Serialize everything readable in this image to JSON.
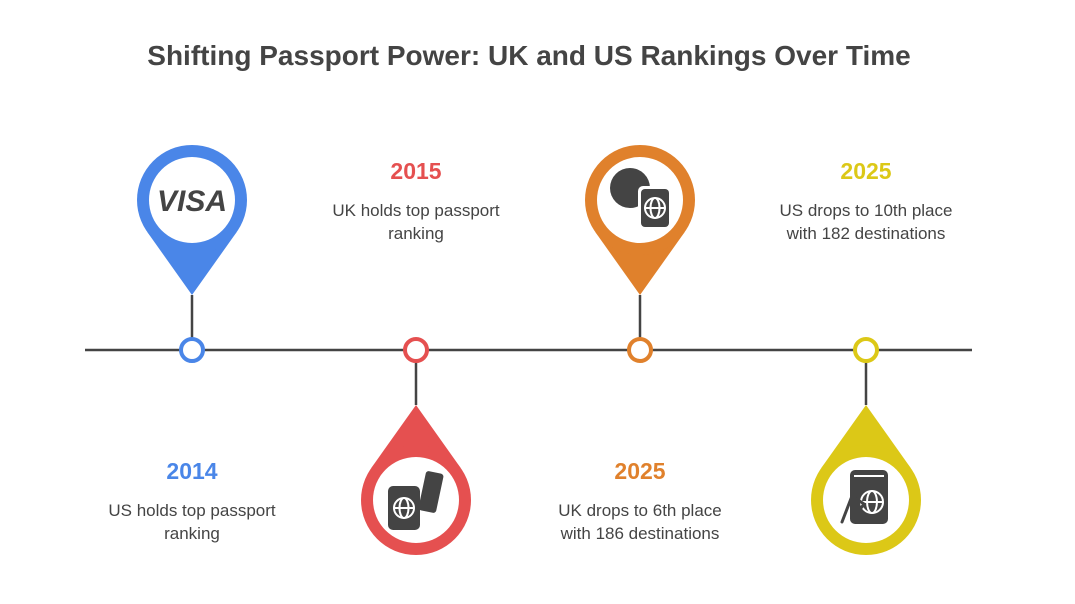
{
  "title": "Shifting Passport Power: UK and US Rankings Over Time",
  "events": [
    {
      "year": "2014",
      "text": "US holds top passport ranking",
      "color": "#4A86E8",
      "icon": "visa-icon",
      "icon_text": "VISA",
      "pin": "top"
    },
    {
      "year": "2015",
      "text": "UK holds top passport ranking",
      "color": "#E55050",
      "icon": "passport-ticket-icon",
      "pin": "bottom"
    },
    {
      "year": "2025",
      "text": "UK drops to 6th place with 186 destinations",
      "color": "#E0812C",
      "icon": "globe-passport-icon",
      "pin": "top"
    },
    {
      "year": "2025",
      "text": "US drops to 10th place with 182 destinations",
      "color": "#DCC817",
      "icon": "hand-passport-icon",
      "pin": "bottom"
    }
  ],
  "colors": {
    "text": "#444444",
    "line": "#444444"
  }
}
